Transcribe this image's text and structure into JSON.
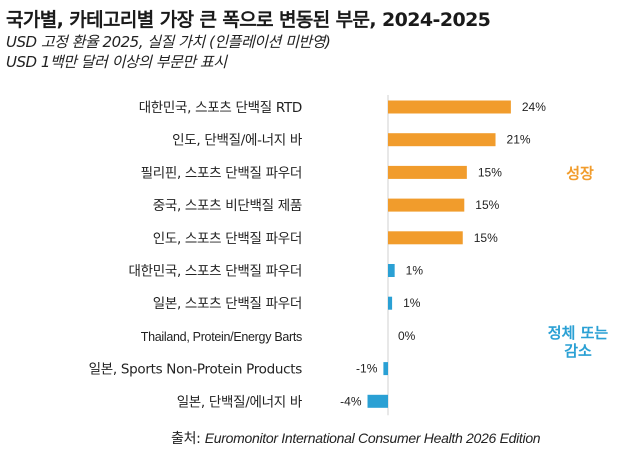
{
  "chart_data": {
    "type": "bar",
    "orientation": "horizontal",
    "title": "국가별, 카테고리별 가장 큰 폭으로 변동된 부문, 2024-2025",
    "subtitle_lines": [
      "USD 고정 환율 2025, 실질 가치 (인플레이션 미반영)",
      "USD 1백만 달러 이상의 부문만 표시"
    ],
    "xlabel": "",
    "ylabel": "",
    "grid": false,
    "categories": [
      "대한민국, 스포츠 단백질 RTD",
      "인도, 단백질/에-너지 바",
      "필리핀, 스포츠 단백질 파우더",
      "중국, 스포츠 비단백질 제품",
      "인도, 스포츠 단백질 파우더",
      "대한민국, 스포츠 단백질 파우더",
      "일본, 스포츠 단백질 파우더",
      "Thailand, Protein/Energy Barts",
      "일본, Sports Non-Protein Products",
      "일본, 단백질/에너지 바"
    ],
    "values": [
      24,
      21,
      15.4,
      14.9,
      14.6,
      1.3,
      0.8,
      0,
      -0.9,
      -4
    ],
    "value_labels": [
      "24%",
      "21%",
      "15%",
      "15%",
      "15%",
      "1%",
      "1%",
      "0%",
      "-1%",
      "-4%"
    ],
    "groups": [
      {
        "label": "성장",
        "color": "#f19c2c",
        "indices": [
          0,
          1,
          2,
          3,
          4
        ]
      },
      {
        "label_lines": [
          "정체 또는",
          "감소"
        ],
        "color": "#2aa0d4",
        "indices": [
          5,
          6,
          7,
          8,
          9
        ]
      }
    ],
    "xlim": [
      -5,
      26
    ]
  },
  "source": {
    "prefix": "출처: ",
    "publication": "Euromonitor International Consumer Health 2026 Edition"
  }
}
